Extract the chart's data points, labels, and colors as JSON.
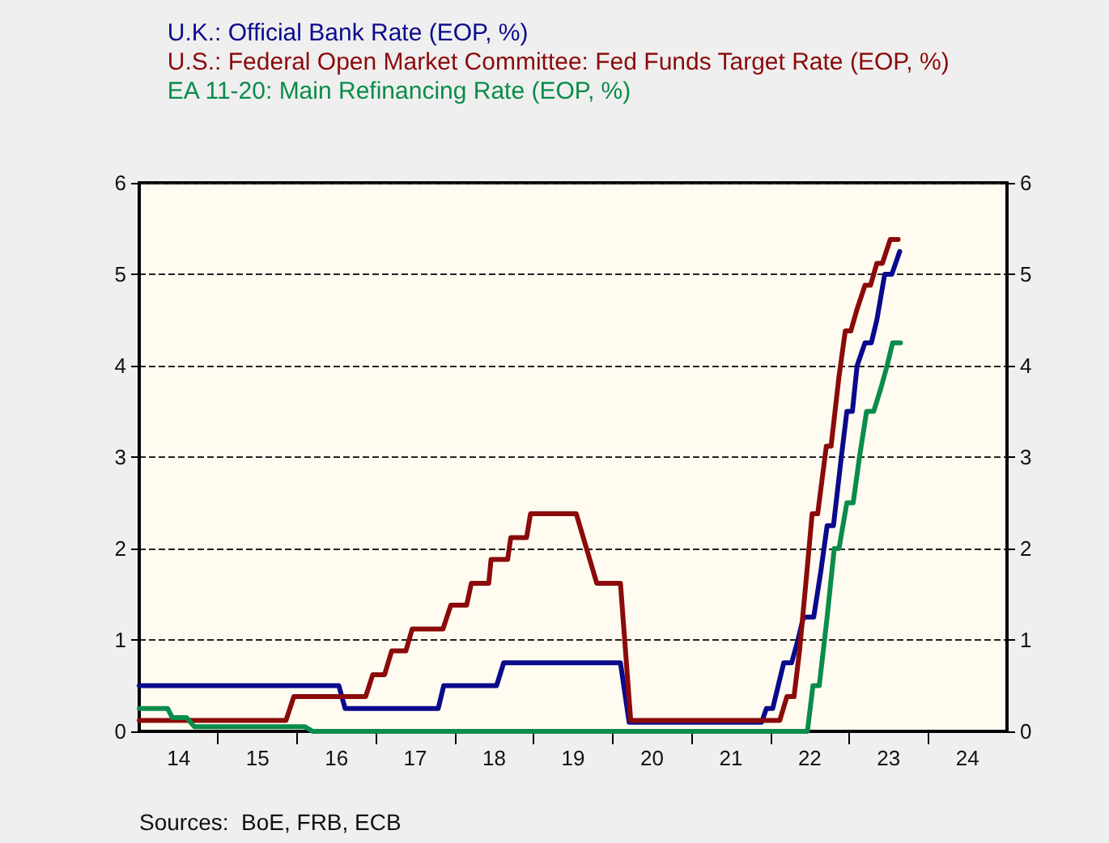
{
  "chart_data": {
    "type": "line",
    "annotations": [
      "Sources:  BoE, FRB, ECB"
    ],
    "xlim": [
      13.5,
      24.5
    ],
    "xticks": [
      14,
      15,
      16,
      17,
      18,
      19,
      20,
      21,
      22,
      23,
      24
    ],
    "ylim": [
      0,
      6
    ],
    "yticks": [
      0,
      1,
      2,
      3,
      4,
      5,
      6
    ],
    "y2lim": [
      0,
      6
    ],
    "y2ticks": [
      0,
      1,
      2,
      3,
      4,
      5,
      6
    ],
    "grid": "y",
    "legend": "top",
    "marker": "none",
    "line_style": "solid",
    "series": [
      {
        "name": "U.K.: Official Bank Rate (EOP, %)",
        "color": "#0a0a8c",
        "x": [
          13.5,
          16.03,
          16.11,
          17.29,
          17.36,
          18.03,
          18.12,
          19.6,
          19.71,
          21.39,
          21.45,
          21.53,
          21.6,
          21.67,
          21.77,
          21.85,
          21.92,
          22.05,
          22.14,
          22.22,
          22.3,
          22.4,
          22.47,
          22.54,
          22.6,
          22.7,
          22.78,
          22.85,
          22.95,
          23.04,
          23.14
        ],
        "values": [
          0.5,
          0.5,
          0.25,
          0.25,
          0.5,
          0.5,
          0.75,
          0.75,
          0.1,
          0.1,
          0.25,
          0.25,
          0.5,
          0.75,
          0.75,
          1,
          1.25,
          1.25,
          1.75,
          2.25,
          2.25,
          3,
          3.5,
          3.5,
          4,
          4.25,
          4.25,
          4.5,
          5,
          5,
          5.25
        ]
      },
      {
        "name": "U.S.: Federal Open Market Committee: Fed Funds Target Rate (EOP, %)",
        "color": "#8b0a0a",
        "x": [
          13.5,
          15.36,
          15.46,
          16.37,
          16.46,
          16.61,
          16.7,
          16.88,
          16.96,
          17.35,
          17.45,
          17.65,
          17.71,
          17.93,
          17.96,
          18.17,
          18.21,
          18.41,
          18.46,
          19.04,
          19.3,
          19.6,
          19.73,
          21.62,
          21.71,
          21.8,
          21.87,
          21.95,
          22.03,
          22.1,
          22.21,
          22.27,
          22.37,
          22.45,
          22.52,
          22.6,
          22.7,
          22.77,
          22.85,
          22.92,
          23.02,
          23.12
        ],
        "values": [
          0.12,
          0.12,
          0.38,
          0.38,
          0.62,
          0.62,
          0.88,
          0.88,
          1.12,
          1.12,
          1.38,
          1.38,
          1.62,
          1.62,
          1.88,
          1.88,
          2.12,
          2.12,
          2.38,
          2.38,
          1.62,
          1.62,
          0.12,
          0.12,
          0.38,
          0.38,
          0.88,
          1.62,
          2.38,
          2.38,
          3.12,
          3.12,
          3.88,
          4.38,
          4.38,
          4.62,
          4.88,
          4.88,
          5.12,
          5.12,
          5.38,
          5.38
        ]
      },
      {
        "name": "EA 11-20: Main Refinancing Rate (EOP, %)",
        "color": "#0a8c4a",
        "x": [
          13.5,
          13.86,
          13.92,
          14.1,
          14.2,
          15.6,
          15.7,
          21.97,
          22.04,
          22.12,
          22.22,
          22.31,
          22.37,
          22.47,
          22.55,
          22.63,
          22.72,
          22.81,
          22.9,
          22.98,
          23.05,
          23.15
        ],
        "values": [
          0.25,
          0.25,
          0.15,
          0.15,
          0.05,
          0.05,
          0,
          0,
          0.5,
          0.5,
          1.25,
          2,
          2,
          2.5,
          2.5,
          3,
          3.5,
          3.5,
          3.75,
          4,
          4.25,
          4.25
        ]
      }
    ]
  }
}
